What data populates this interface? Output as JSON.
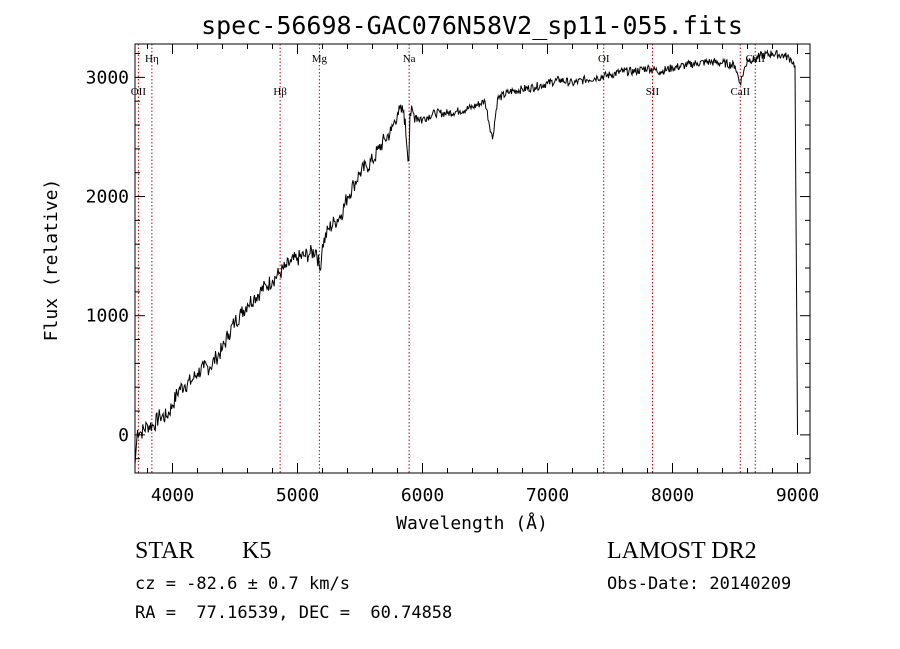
{
  "chart_data": {
    "type": "line",
    "title": "spec-56698-GAC076N58V2_sp11-055.fits",
    "xlabel": "Wavelength (Å)",
    "ylabel": "Flux (relative)",
    "xlim": [
      3700,
      9100
    ],
    "ylim": [
      -320,
      3280
    ],
    "x_ticks": [
      4000,
      5000,
      6000,
      7000,
      8000,
      9000
    ],
    "y_ticks": [
      0,
      1000,
      2000,
      3000
    ],
    "grid": false,
    "line_color": "#000000",
    "marker_line_color": "#cc0000",
    "series": [
      {
        "x": [
          3700,
          3720,
          3750,
          3800,
          3850,
          3900,
          3950,
          4000,
          4050,
          4100,
          4150,
          4200,
          4250,
          4300,
          4350,
          4400,
          4450,
          4500,
          4550,
          4600,
          4650,
          4700,
          4750,
          4800,
          4850,
          4900,
          4950,
          5000,
          5050,
          5100,
          5150,
          5180,
          5200,
          5250,
          5300,
          5350,
          5400,
          5450,
          5500,
          5550,
          5600,
          5650,
          5700,
          5750,
          5800,
          5850,
          5890,
          5900,
          5950,
          6000,
          6100,
          6200,
          6300,
          6400,
          6500,
          6560,
          6600,
          6700,
          6800,
          6900,
          7000,
          7100,
          7200,
          7300,
          7400,
          7500,
          7600,
          7700,
          7800,
          7900,
          8000,
          8100,
          8200,
          8300,
          8400,
          8500,
          8540,
          8600,
          8660,
          8700,
          8800,
          8900,
          8950,
          8980,
          9000
        ],
        "y": [
          -250,
          40,
          20,
          80,
          80,
          160,
          150,
          250,
          380,
          420,
          450,
          520,
          560,
          570,
          650,
          720,
          850,
          950,
          1020,
          1100,
          1150,
          1200,
          1250,
          1300,
          1350,
          1400,
          1450,
          1480,
          1500,
          1520,
          1550,
          1380,
          1600,
          1730,
          1790,
          1850,
          2000,
          2100,
          2200,
          2250,
          2300,
          2400,
          2480,
          2550,
          2700,
          2720,
          2300,
          2700,
          2680,
          2650,
          2700,
          2700,
          2720,
          2750,
          2800,
          2480,
          2820,
          2880,
          2900,
          2920,
          2950,
          2980,
          2950,
          2980,
          3000,
          3020,
          3050,
          3050,
          3080,
          3050,
          3080,
          3100,
          3120,
          3130,
          3120,
          3100,
          2950,
          3150,
          3150,
          3180,
          3200,
          3180,
          3150,
          3100,
          0
        ]
      }
    ],
    "line_markers": [
      {
        "label": "OII",
        "x": 3727,
        "label_row": 1
      },
      {
        "label": "Hη",
        "x": 3835,
        "label_row": 0
      },
      {
        "label": "Hβ",
        "x": 4861,
        "label_row": 1
      },
      {
        "label": "Mg",
        "x": 5175,
        "label_row": 0
      },
      {
        "label": "Na",
        "x": 5893,
        "label_row": 0
      },
      {
        "label": "OI",
        "x": 7450,
        "label_row": 0
      },
      {
        "label": "SII",
        "x": 7840,
        "label_row": 1
      },
      {
        "label": "CaII",
        "x": 8542,
        "label_row": 1
      },
      {
        "label": "CaII",
        "x": 8662,
        "label_row": 0
      }
    ]
  },
  "footer": {
    "class_label": "STAR",
    "subclass": "K5",
    "survey": "LAMOST DR2",
    "redshift_text": "cz = -82.6 ± 0.7 km/s",
    "obs_date_text": "Obs-Date: 20140209",
    "coords_text": "RA =  77.16539, DEC =  60.74858"
  }
}
